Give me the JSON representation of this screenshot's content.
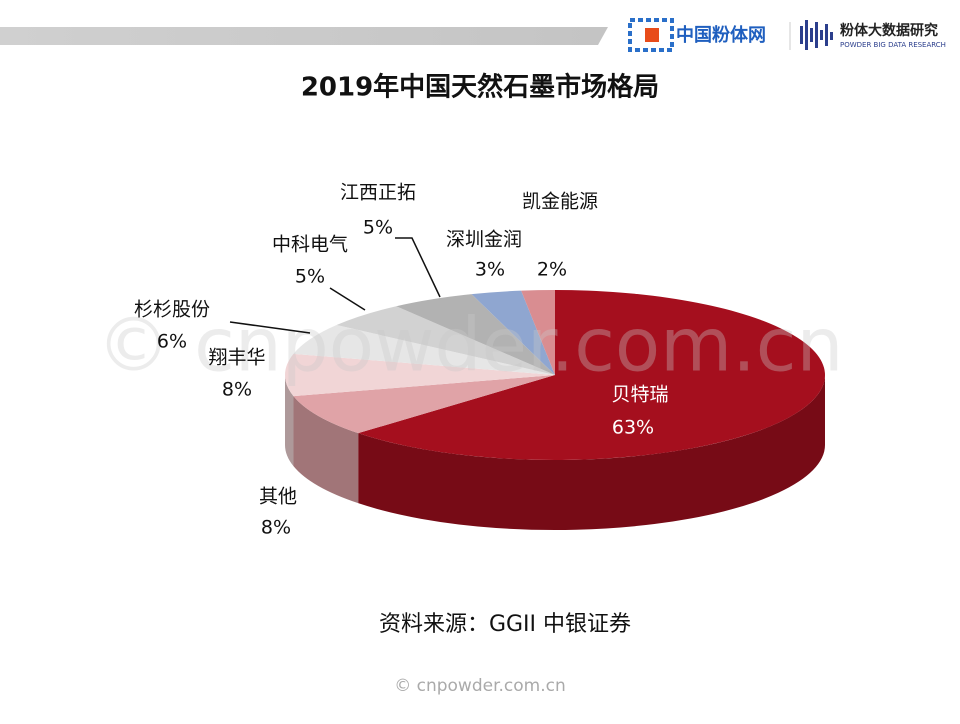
{
  "header": {
    "logo": "中国粉体网",
    "brand": "粉体大数据研究",
    "brand_en": "POWDER BIG DATA RESEARCH"
  },
  "chart_data": {
    "type": "pie",
    "title": "2019年中国天然石墨市场格局",
    "categories": [
      "贝特瑞",
      "其他",
      "翔丰华",
      "杉杉股份",
      "中科电气",
      "江西正拓",
      "深圳金润",
      "凯金能源"
    ],
    "values": [
      63,
      8,
      8,
      6,
      5,
      5,
      3,
      2
    ],
    "value_labels": [
      "63%",
      "8%",
      "8%",
      "6%",
      "5%",
      "5%",
      "3%",
      "2%"
    ],
    "colors": [
      "#a50f1e",
      "#e0a3a7",
      "#f1d5d6",
      "#e6e6e6",
      "#d2d2d2",
      "#b2b2b2",
      "#8fa6d0",
      "#d98d91"
    ]
  },
  "source": "资料来源：GGII 中银证券",
  "watermark": "© cnpowder.com.cn",
  "footer": "© cnpowder.com.cn"
}
